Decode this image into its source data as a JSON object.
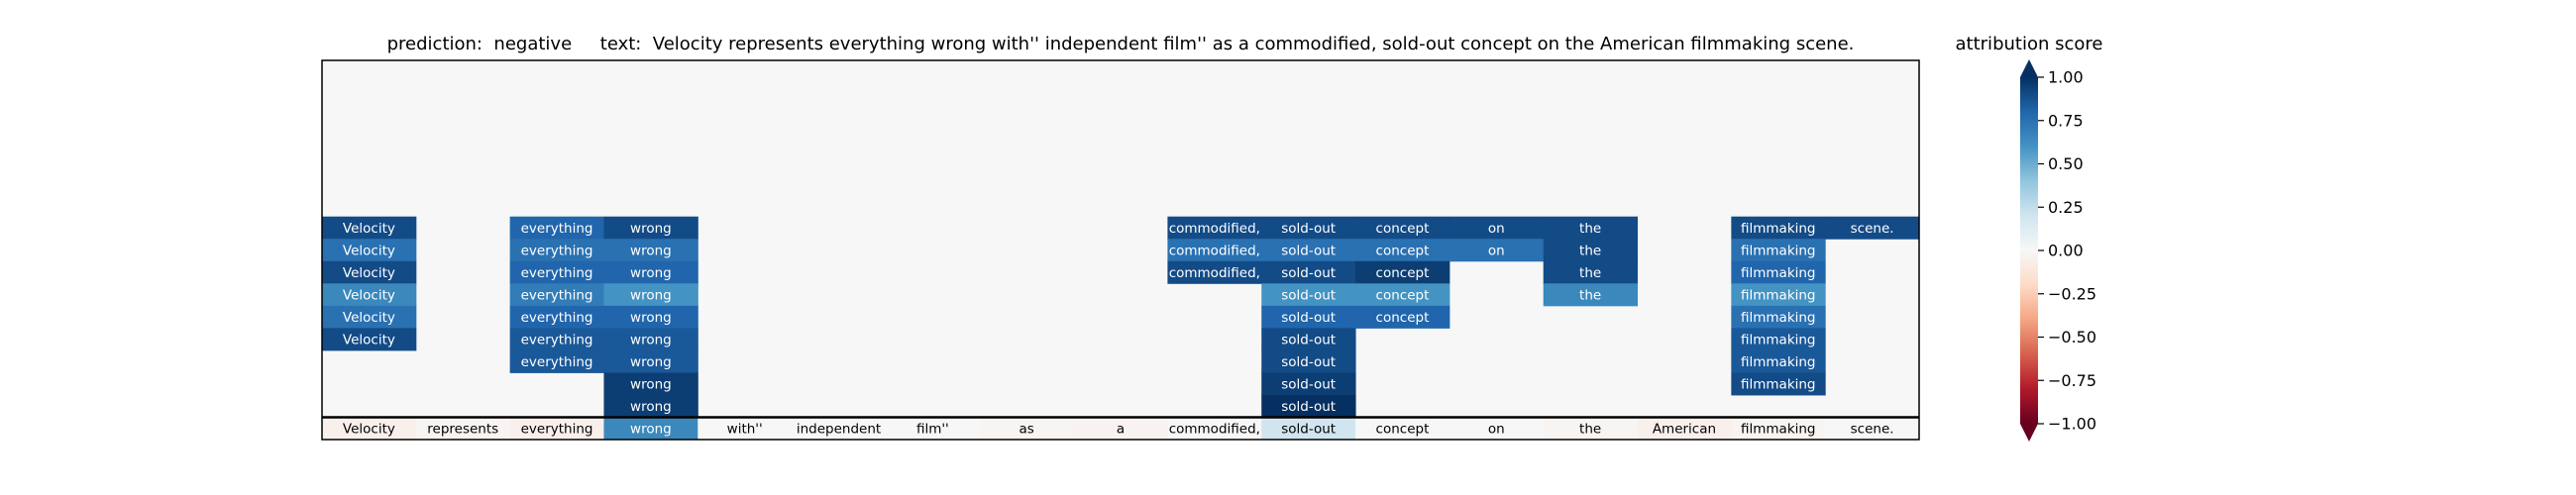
{
  "chart_data": {
    "type": "heatmap",
    "title": "prediction:  negative     text:  Velocity represents everything wrong with'' independent film'' as a commodified, sold-out concept on the American filmmaking scene.",
    "tokens": [
      "Velocity",
      "represents",
      "everything",
      "wrong",
      "with''",
      "independent",
      "film''",
      "as",
      "a",
      "commodified,",
      "sold-out",
      "concept",
      "on",
      "the",
      "American",
      "filmmaking",
      "scene."
    ],
    "rows": [
      [
        0.9,
        null,
        0.8,
        0.9,
        null,
        null,
        null,
        null,
        null,
        0.9,
        0.9,
        0.9,
        0.9,
        0.9,
        null,
        0.9,
        0.9
      ],
      [
        0.75,
        null,
        0.75,
        0.75,
        null,
        null,
        null,
        null,
        null,
        0.75,
        0.75,
        0.75,
        0.75,
        0.9,
        null,
        0.75,
        null
      ],
      [
        0.9,
        null,
        0.8,
        0.8,
        null,
        null,
        null,
        null,
        null,
        0.9,
        0.9,
        0.95,
        null,
        0.9,
        null,
        0.8,
        null
      ],
      [
        0.65,
        null,
        0.7,
        0.6,
        null,
        null,
        null,
        null,
        null,
        null,
        0.6,
        0.6,
        null,
        0.65,
        null,
        0.6,
        null
      ],
      [
        0.75,
        null,
        0.8,
        0.8,
        null,
        null,
        null,
        null,
        null,
        null,
        0.8,
        0.8,
        null,
        null,
        null,
        0.75,
        null
      ],
      [
        0.9,
        null,
        0.85,
        0.85,
        null,
        null,
        null,
        null,
        null,
        null,
        0.9,
        null,
        null,
        null,
        null,
        0.85,
        null
      ],
      [
        null,
        null,
        0.85,
        0.85,
        null,
        null,
        null,
        null,
        null,
        null,
        0.9,
        null,
        null,
        null,
        null,
        0.85,
        null
      ],
      [
        null,
        null,
        null,
        0.95,
        null,
        null,
        null,
        null,
        null,
        null,
        0.95,
        null,
        null,
        null,
        null,
        0.9,
        null
      ],
      [
        null,
        null,
        null,
        0.95,
        null,
        null,
        null,
        null,
        null,
        null,
        1.0,
        null,
        null,
        null,
        null,
        null,
        null
      ]
    ],
    "scores": [
      -0.05,
      -0.02,
      -0.05,
      0.65,
      0,
      0,
      0,
      -0.02,
      -0.03,
      0,
      0.2,
      0,
      0,
      -0.02,
      -0.05,
      -0.02,
      0
    ],
    "colormap": [
      "#67001f",
      "#b2182b",
      "#d6604d",
      "#f4a582",
      "#fddbc7",
      "#f7f7f7",
      "#d1e5f0",
      "#92c5de",
      "#4393c3",
      "#2166ac",
      "#053061"
    ],
    "colorbar_label": "attribution score",
    "clim": [
      -1,
      1
    ],
    "cticks": [
      {
        "value": 1,
        "label": "1.00"
      },
      {
        "value": 0.75,
        "label": "0.75"
      },
      {
        "value": 0.5,
        "label": "0.50"
      },
      {
        "value": 0.25,
        "label": "0.25"
      },
      {
        "value": 0,
        "label": "0.00"
      },
      {
        "value": -0.25,
        "label": "−0.25"
      },
      {
        "value": -0.5,
        "label": "−0.50"
      },
      {
        "value": -0.75,
        "label": "−0.75"
      },
      {
        "value": -1,
        "label": "−1.00"
      }
    ]
  }
}
